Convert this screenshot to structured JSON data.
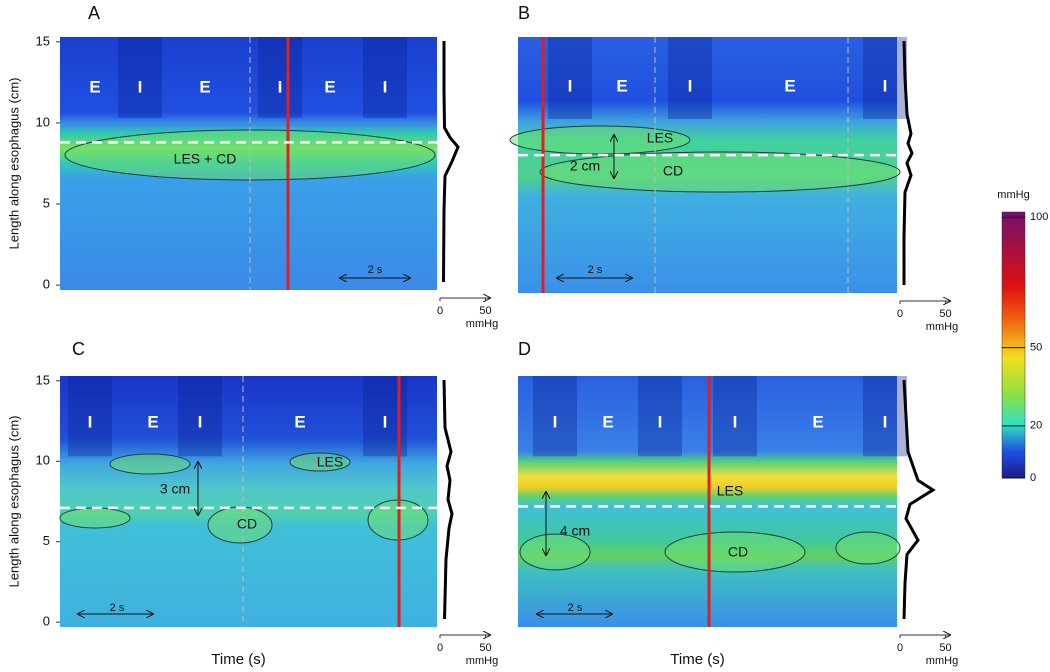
{
  "chart_data": [
    {
      "type": "heatmap",
      "title": "A",
      "ylabel": "Length along esophagus (cm)",
      "ylim": [
        -0.3,
        15.3
      ],
      "yticks": [
        0,
        5,
        10,
        15
      ],
      "phases": [
        "E",
        "I",
        "E",
        "I",
        "E",
        "I"
      ],
      "annotations": [
        "LES + CD",
        "2 s"
      ],
      "reference_y": 8.8,
      "profile_xlim": [
        0,
        55
      ],
      "profile_xticks": [
        0,
        50
      ],
      "profile_label": "mmHg"
    },
    {
      "type": "heatmap",
      "title": "B",
      "ylim": [
        -0.3,
        15.3
      ],
      "phases": [
        "I",
        "E",
        "I",
        "E",
        "I"
      ],
      "annotations": [
        "LES",
        "2 cm",
        "CD",
        "2 s"
      ],
      "reference_y": 8.1,
      "profile_xlim": [
        0,
        55
      ],
      "profile_xticks": [
        0,
        50
      ],
      "profile_label": "mmHg"
    },
    {
      "type": "heatmap",
      "title": "C",
      "ylabel": "Length along esophagus (cm)",
      "xlabel": "Time (s)",
      "ylim": [
        -0.3,
        15.3
      ],
      "yticks": [
        0,
        5,
        10,
        15
      ],
      "phases": [
        "I",
        "E",
        "I",
        "E",
        "I"
      ],
      "annotations": [
        "LES",
        "3 cm",
        "CD",
        "2 s"
      ],
      "reference_y": 7.1,
      "profile_xlim": [
        0,
        55
      ],
      "profile_xticks": [
        0,
        50
      ],
      "profile_label": "mmHg"
    },
    {
      "type": "heatmap",
      "title": "D",
      "xlabel": "Time (s)",
      "ylim": [
        -0.3,
        15.3
      ],
      "phases": [
        "I",
        "E",
        "I",
        "I",
        "E",
        "I"
      ],
      "annotations": [
        "LES",
        "4 cm",
        "CD",
        "2 s"
      ],
      "reference_y": 7.2,
      "profile_xlim": [
        0,
        55
      ],
      "profile_xticks": [
        0,
        50
      ],
      "profile_label": "mmHg"
    },
    {
      "type": "colorbar",
      "title": "mmHg",
      "ylim": [
        0,
        102
      ],
      "yticks": [
        0,
        20,
        50,
        100
      ]
    }
  ]
}
